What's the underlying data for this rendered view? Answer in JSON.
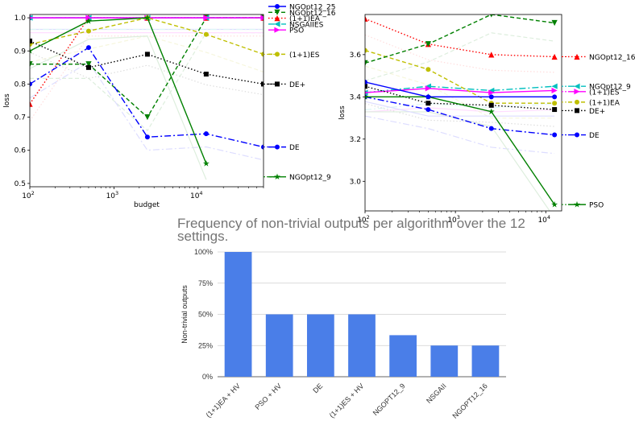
{
  "chart_data": [
    {
      "id": "left",
      "type": "line",
      "xlabel": "budget",
      "ylabel": "loss",
      "xscale": "log",
      "xlim": [
        100,
        60000
      ],
      "ylim": [
        0.49,
        1.01
      ],
      "xticks": [
        {
          "v": 100,
          "b": "10",
          "e": "2"
        },
        {
          "v": 1000,
          "b": "10",
          "e": "3"
        },
        {
          "v": 10000,
          "b": "10",
          "e": "4"
        }
      ],
      "yticks": [
        0.5,
        0.6,
        0.7,
        0.8,
        0.9,
        1.0
      ],
      "series": [
        {
          "name": "NGOpt12_25",
          "color": "#0000ff",
          "dash": "",
          "marker": "circle",
          "x": [
            100,
            500,
            2500,
            12500,
            60000
          ],
          "y": [
            1.0,
            1.0,
            1.0,
            1.0,
            1.0
          ]
        },
        {
          "name": "NGOpt12_16",
          "color": "#008000",
          "dash": "5,3",
          "marker": "tri-down",
          "x": [
            100,
            500,
            2500,
            12500,
            60000
          ],
          "y": [
            0.86,
            0.86,
            0.7,
            1.0,
            1.0
          ]
        },
        {
          "name": "(1+1)EA",
          "color": "#ff0000",
          "dash": "1.5,2.5",
          "marker": "tri-up",
          "x": [
            100,
            500,
            2500,
            12500,
            60000
          ],
          "y": [
            0.74,
            1.0,
            1.0,
            1.0,
            1.0
          ]
        },
        {
          "name": "NSGAIIES",
          "color": "#00bfbf",
          "dash": "8,3,2,3",
          "marker": "tri-left",
          "x": [
            100,
            500,
            2500,
            12500,
            60000
          ],
          "y": [
            1.0,
            1.0,
            1.0,
            1.0,
            1.0
          ]
        },
        {
          "name": "PSO",
          "color": "#ff00ff",
          "dash": "",
          "marker": "tri-right",
          "x": [
            100,
            500,
            2500,
            12500,
            60000
          ],
          "y": [
            1.0,
            1.0,
            1.0,
            1.0,
            1.0
          ]
        },
        {
          "name": "(1+1)ES",
          "color": "#bfbf00",
          "dash": "5,3",
          "marker": "circle",
          "x": [
            100,
            500,
            2500,
            12500,
            60000
          ],
          "y": [
            0.92,
            0.96,
            1.0,
            0.95,
            0.89
          ]
        },
        {
          "name": "DE+",
          "color": "#000000",
          "dash": "1.5,2.5",
          "marker": "square",
          "x": [
            100,
            500,
            2500,
            12500,
            60000
          ],
          "y": [
            0.93,
            0.85,
            0.89,
            0.83,
            0.8
          ]
        },
        {
          "name": "DE",
          "color": "#0000ff",
          "dash": "8,3,2,3",
          "marker": "circle",
          "x": [
            100,
            500,
            2500,
            12500,
            60000
          ],
          "y": [
            0.8,
            0.91,
            0.64,
            0.65,
            0.61
          ]
        },
        {
          "name": "NGOpt12_9",
          "color": "#008000",
          "dash": "",
          "marker": "star",
          "x": [
            100,
            500,
            2500,
            12500
          ],
          "y": [
            0.9,
            0.99,
            1.0,
            0.56
          ]
        }
      ],
      "legend_top": [
        "NGOpt12_25",
        "NGOpt12_16",
        "(1+1)EA",
        "NSGAIIES",
        "PSO"
      ],
      "legend_side": [
        {
          "name": "(1+1)ES",
          "y": 0.89
        },
        {
          "name": "DE+",
          "y": 0.8
        },
        {
          "name": "DE",
          "y": 0.61
        },
        {
          "name": "NGOpt12_9",
          "y": 0.52
        }
      ]
    },
    {
      "id": "right",
      "type": "line",
      "xlabel": "",
      "ylabel": "loss",
      "xscale": "log",
      "xlim": [
        100,
        15000
      ],
      "ylim": [
        2.86,
        3.79
      ],
      "xticks": [
        {
          "v": 100,
          "b": "10",
          "e": "2"
        },
        {
          "v": 1000,
          "b": "10",
          "e": "3"
        },
        {
          "v": 10000,
          "b": "10",
          "e": "4"
        }
      ],
      "yticks": [
        3.0,
        3.2,
        3.4,
        3.6
      ],
      "series": [
        {
          "name": "NGOpt12_16",
          "color": "#ff0000",
          "dash": "1.5,2.5",
          "marker": "tri-up",
          "x": [
            100,
            500,
            2500,
            12500
          ],
          "y": [
            3.77,
            3.65,
            3.6,
            3.59
          ]
        },
        {
          "name": "NGOpt12_9",
          "color": "#00bfbf",
          "dash": "8,3,2,3",
          "marker": "tri-left",
          "x": [
            100,
            500,
            2500,
            12500
          ],
          "y": [
            3.42,
            3.45,
            3.43,
            3.45
          ]
        },
        {
          "name": "(1+1)ES",
          "color": "#ff00ff",
          "dash": "",
          "marker": "tri-right",
          "x": [
            100,
            500,
            2500,
            12500
          ],
          "y": [
            3.42,
            3.44,
            3.42,
            3.43
          ]
        },
        {
          "name": "(1+1)EA",
          "color": "#bfbf00",
          "dash": "5,3",
          "marker": "circle",
          "x": [
            100,
            500,
            2500,
            12500
          ],
          "y": [
            3.62,
            3.53,
            3.37,
            3.37
          ]
        },
        {
          "name": "DE+",
          "color": "#000000",
          "dash": "1.5,2.5",
          "marker": "square",
          "x": [
            100,
            500,
            2500,
            12500
          ],
          "y": [
            3.45,
            3.37,
            3.36,
            3.34
          ]
        },
        {
          "name": "DE",
          "color": "#0000ff",
          "dash": "8,3,2,3",
          "marker": "circle",
          "x": [
            100,
            500,
            2500,
            12500
          ],
          "y": [
            3.4,
            3.34,
            3.25,
            3.22
          ]
        },
        {
          "name": "PSO",
          "color": "#008000",
          "dash": "",
          "marker": "star",
          "x": [
            100,
            500,
            2500,
            12500
          ],
          "y": [
            3.4,
            3.4,
            3.33,
            2.89
          ]
        },
        {
          "name": "",
          "color": "#008000",
          "dash": "5,3",
          "marker": "tri-down",
          "x": [
            100,
            500,
            2500,
            12500
          ],
          "y": [
            3.56,
            3.65,
            3.79,
            3.75
          ]
        },
        {
          "name": "",
          "color": "#0000ff",
          "dash": "",
          "marker": "circle",
          "x": [
            100,
            500,
            2500,
            12500
          ],
          "y": [
            3.47,
            3.4,
            3.4,
            3.4
          ]
        }
      ],
      "legend": [
        {
          "name": "NGOpt12_16",
          "y": 3.59
        },
        {
          "name": "NGOpt12_9",
          "y": 3.45
        },
        {
          "name": "(1+1)ES",
          "y": 3.425
        },
        {
          "name": "(1+1)EA",
          "y": 3.375
        },
        {
          "name": "DE+",
          "y": 3.335
        },
        {
          "name": "DE",
          "y": 3.22
        },
        {
          "name": "PSO",
          "y": 2.89
        }
      ]
    },
    {
      "id": "bottom",
      "type": "bar",
      "title": "Frequency of non-trivial outputs per algorithm over the 12 settings.",
      "ylabel": "Non-trivial outputs",
      "categories": [
        "(1+1)EA + HV",
        "PSO + HV",
        "DE",
        "(1+1)ES + HV",
        "NGOPT12_9",
        "NSGAII",
        "NGOPT12_16"
      ],
      "values": [
        1.0,
        0.5,
        0.5,
        0.5,
        0.333,
        0.25,
        0.25
      ],
      "yticks": [
        "0%",
        "25%",
        "50%",
        "75%",
        "100%"
      ],
      "ylim": [
        0,
        1
      ],
      "color": "#4a7ee8",
      "grid": true
    }
  ]
}
